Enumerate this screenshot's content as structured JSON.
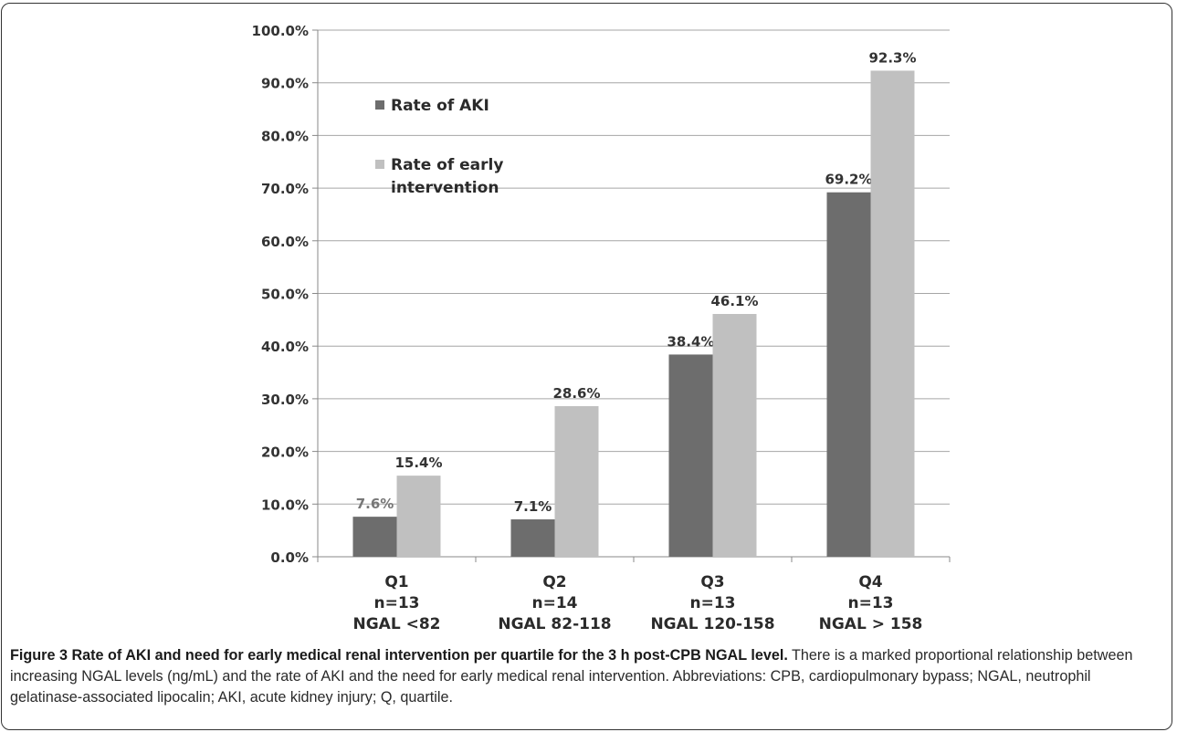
{
  "chart_data": {
    "type": "bar",
    "categories": [
      {
        "q": "Q1",
        "n": "n=13",
        "ngal": "NGAL <82"
      },
      {
        "q": "Q2",
        "n": "n=14",
        "ngal": "NGAL 82-118"
      },
      {
        "q": "Q3",
        "n": "n=13",
        "ngal": "NGAL 120-158"
      },
      {
        "q": "Q4",
        "n": "n=13",
        "ngal": "NGAL > 158"
      }
    ],
    "series": [
      {
        "name": "Rate of AKI",
        "color": "#6d6d6d",
        "values": [
          7.6,
          7.1,
          38.4,
          69.2
        ],
        "labels": [
          "7.6%",
          "7.1%",
          "38.4%",
          "69.2%"
        ]
      },
      {
        "name": "Rate of early intervention",
        "color": "#c0c0c0",
        "values": [
          15.4,
          28.6,
          46.1,
          92.3
        ],
        "labels": [
          "15.4%",
          "28.6%",
          "46.1%",
          "92.3%"
        ]
      }
    ],
    "legend_lines": [
      [
        "Rate of AKI"
      ],
      [
        "Rate of early",
        "intervention"
      ]
    ],
    "yticks": [
      "0.0%",
      "10.0%",
      "20.0%",
      "30.0%",
      "40.0%",
      "50.0%",
      "60.0%",
      "70.0%",
      "80.0%",
      "90.0%",
      "100.0%"
    ],
    "ylim": [
      0,
      100
    ],
    "grid": true,
    "legend_position": "top-left"
  },
  "caption": {
    "title": "Figure 3 Rate of AKI and need for early medical renal intervention per quartile for the 3 h post-CPB NGAL level.",
    "body": " There is a marked proportional relationship between increasing NGAL levels (ng/mL) and the rate of AKI and the need for early medical renal intervention. Abbreviations: CPB, cardiopulmonary bypass; NGAL, neutrophil gelatinase-associated lipocalin; AKI, acute kidney injury; Q, quartile."
  }
}
